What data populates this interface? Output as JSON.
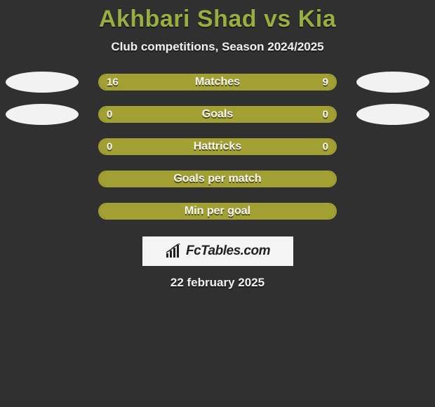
{
  "title": "Akhbari Shad vs Kia",
  "subtitle": "Club competitions, Season 2024/2025",
  "date": "22 february 2025",
  "colors": {
    "background": "#303030",
    "accent": "#97ae40",
    "bar_fill": "#a3a033",
    "bar_border": "#a3a033",
    "text_light": "#f5f5f5",
    "badge_bg": "#f2f2f2",
    "logo_bg": "#f5f5f5"
  },
  "stats": [
    {
      "label": "Matches",
      "left_value": "16",
      "right_value": "9",
      "left_fill_pct": 63,
      "right_fill_pct": 37,
      "show_left_badge": true,
      "show_right_badge": true,
      "show_values": true
    },
    {
      "label": "Goals",
      "left_value": "0",
      "right_value": "0",
      "left_fill_pct": 100,
      "right_fill_pct": 0,
      "show_left_badge": true,
      "show_right_badge": true,
      "show_values": true
    },
    {
      "label": "Hattricks",
      "left_value": "0",
      "right_value": "0",
      "left_fill_pct": 100,
      "right_fill_pct": 0,
      "show_left_badge": false,
      "show_right_badge": false,
      "show_values": true
    },
    {
      "label": "Goals per match",
      "left_value": "",
      "right_value": "",
      "left_fill_pct": 100,
      "right_fill_pct": 0,
      "show_left_badge": false,
      "show_right_badge": false,
      "show_values": false
    },
    {
      "label": "Min per goal",
      "left_value": "",
      "right_value": "",
      "left_fill_pct": 100,
      "right_fill_pct": 0,
      "show_left_badge": false,
      "show_right_badge": false,
      "show_values": false
    }
  ],
  "logo": {
    "text": "FcTables.com"
  }
}
